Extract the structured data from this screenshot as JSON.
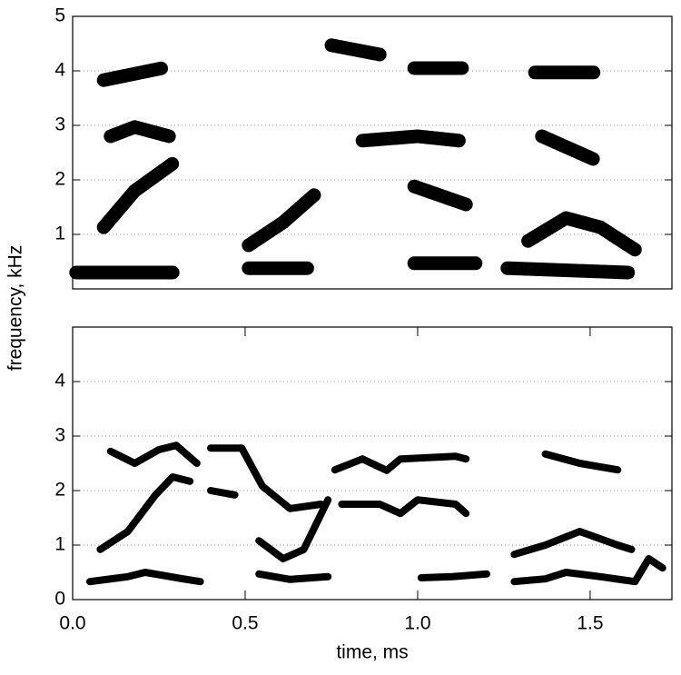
{
  "chart_data": [
    {
      "type": "spectrogram",
      "ylabel": "frequency, kHz",
      "xlim": [
        0,
        1.737
      ],
      "ylim": [
        0,
        5
      ],
      "yticks": [
        1,
        2,
        3,
        4,
        5
      ],
      "grid": true,
      "series": [
        {
          "color": "#000000",
          "x": [
            0.01,
            0.29,
            null,
            0.51,
            0.68,
            null,
            0.99,
            1.17,
            null,
            1.26,
            1.61
          ],
          "values": [
            0.3,
            0.3,
            null,
            0.38,
            0.38,
            null,
            0.47,
            0.47,
            null,
            0.38,
            0.3
          ]
        },
        {
          "color": "#000000",
          "x": [
            0.09,
            0.18,
            0.29,
            null,
            0.51,
            0.61,
            0.7,
            null,
            0.99,
            1.14,
            null,
            1.32,
            1.43,
            1.53,
            1.63
          ],
          "values": [
            1.13,
            1.8,
            2.3,
            null,
            0.8,
            1.22,
            1.72,
            null,
            1.88,
            1.55,
            null,
            0.88,
            1.3,
            1.13,
            0.72
          ]
        },
        {
          "color": "#000000",
          "x": [
            0.11,
            0.18,
            0.28,
            null,
            0.84,
            1.0,
            1.12,
            null,
            1.36,
            1.51
          ],
          "values": [
            2.8,
            2.97,
            2.8,
            null,
            2.72,
            2.8,
            2.72,
            null,
            2.8,
            2.38
          ]
        },
        {
          "color": "#000000",
          "x": [
            0.09,
            0.26,
            null,
            0.75,
            0.89,
            null,
            0.99,
            1.13,
            null,
            1.34,
            1.51
          ],
          "values": [
            3.83,
            4.05,
            null,
            4.47,
            4.3,
            null,
            4.05,
            4.05,
            null,
            3.97,
            3.97
          ]
        }
      ]
    },
    {
      "type": "formants",
      "xlabel": "time, ms",
      "xlim": [
        0,
        1.737
      ],
      "ylim": [
        0,
        5
      ],
      "yticks": [
        0,
        1,
        2,
        3,
        4
      ],
      "xticks": [
        {
          "value": 0,
          "label": "0.0"
        },
        {
          "value": 0.5,
          "label": "0.5"
        },
        {
          "value": 1,
          "label": "1.0"
        },
        {
          "value": 1.5,
          "label": "1.5"
        }
      ],
      "grid": true,
      "series": [
        {
          "color": "#000000",
          "x": [
            0.05,
            0.16,
            0.21,
            0.32,
            0.37,
            null,
            0.54,
            0.63,
            0.74,
            null,
            1.01,
            1.1,
            1.2,
            null,
            1.28,
            1.37,
            1.43,
            1.53,
            1.63,
            1.67,
            1.71
          ],
          "values": [
            0.33,
            0.42,
            0.5,
            0.38,
            0.33,
            null,
            0.47,
            0.37,
            0.42,
            null,
            0.4,
            0.42,
            0.47,
            null,
            0.33,
            0.38,
            0.5,
            0.42,
            0.33,
            0.75,
            0.58
          ]
        },
        {
          "color": "#000000",
          "x": [
            0.08,
            0.16,
            0.24,
            0.29,
            0.34,
            null,
            0.4,
            0.47,
            null,
            0.54,
            0.61,
            0.67,
            0.74,
            null,
            0.78,
            0.89,
            0.95,
            1.0,
            1.11,
            1.14,
            null,
            1.28,
            1.37,
            1.47,
            1.58,
            1.62
          ],
          "values": [
            0.92,
            1.25,
            1.92,
            2.25,
            2.17,
            null,
            2.0,
            1.92,
            null,
            1.08,
            0.75,
            0.92,
            1.83,
            null,
            1.75,
            1.75,
            1.58,
            1.83,
            1.75,
            1.58,
            null,
            0.83,
            1.0,
            1.25,
            1.0,
            0.92
          ]
        },
        {
          "color": "#000000",
          "x": [
            0.11,
            0.18,
            0.25,
            0.3,
            0.36,
            null,
            0.4,
            0.49,
            0.55,
            0.63,
            0.72,
            null,
            0.76,
            0.84,
            0.91,
            0.95,
            1.11,
            1.14,
            null,
            1.37,
            1.47,
            1.58
          ],
          "values": [
            2.72,
            2.5,
            2.75,
            2.83,
            2.5,
            null,
            2.78,
            2.78,
            2.08,
            1.67,
            1.75,
            null,
            2.38,
            2.58,
            2.37,
            2.58,
            2.63,
            2.58,
            null,
            2.67,
            2.5,
            2.38
          ]
        }
      ]
    }
  ]
}
